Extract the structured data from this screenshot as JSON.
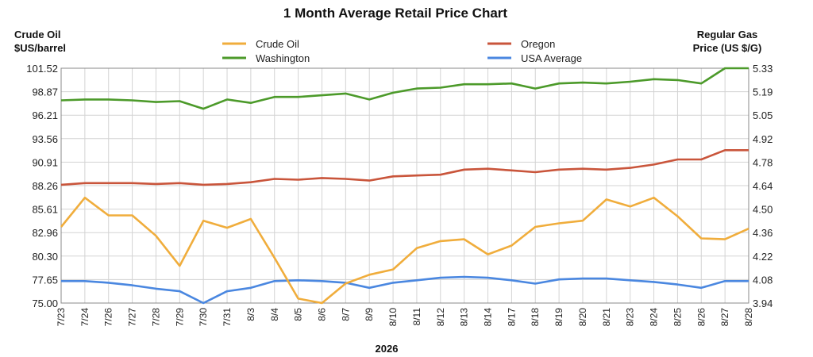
{
  "chart_data": {
    "type": "line",
    "title": "1 Month Average Retail Price Chart",
    "xlabel": "2026",
    "ylabel_left": [
      "Crude Oil",
      "$US/barrel"
    ],
    "ylabel_right": [
      "Regular Gas",
      "Price (US $/G)"
    ],
    "y_left_ticks": [
      "101.52",
      "98.87",
      "96.21",
      "93.56",
      "90.91",
      "88.26",
      "85.61",
      "82.96",
      "80.30",
      "77.65",
      "75.00"
    ],
    "y_right_ticks": [
      "5.33",
      "5.19",
      "5.05",
      "4.92",
      "4.78",
      "4.64",
      "4.50",
      "4.36",
      "4.22",
      "4.08",
      "3.94"
    ],
    "y_left_range": [
      75.0,
      101.52
    ],
    "y_right_range": [
      3.94,
      5.33
    ],
    "grid": true,
    "legend_position": "top",
    "categories": [
      "7/23",
      "7/24",
      "7/26",
      "7/27",
      "7/28",
      "7/29",
      "7/30",
      "7/31",
      "8/3",
      "8/4",
      "8/5",
      "8/6",
      "8/7",
      "8/9",
      "8/10",
      "8/11",
      "8/12",
      "8/13",
      "8/14",
      "8/17",
      "8/18",
      "8/19",
      "8/20",
      "8/21",
      "8/23",
      "8/24",
      "8/25",
      "8/26",
      "8/27",
      "8/28"
    ],
    "series": [
      {
        "name": "Crude Oil",
        "axis": "left",
        "color": "#f0ad3c",
        "values": [
          83.6,
          86.9,
          84.9,
          84.9,
          82.6,
          79.2,
          84.3,
          83.5,
          84.5,
          80.1,
          75.5,
          75.0,
          77.2,
          78.2,
          78.8,
          81.2,
          82.0,
          82.2,
          80.5,
          81.5,
          83.6,
          84.0,
          84.3,
          86.7,
          85.9,
          86.9,
          84.8,
          82.3,
          82.2,
          83.4
        ]
      },
      {
        "name": "Washington",
        "axis": "right",
        "color": "#4c9a2a",
        "values": [
          5.14,
          5.145,
          5.145,
          5.14,
          5.13,
          5.135,
          5.09,
          5.145,
          5.125,
          5.16,
          5.16,
          5.17,
          5.18,
          5.145,
          5.185,
          5.21,
          5.215,
          5.235,
          5.235,
          5.24,
          5.21,
          5.24,
          5.245,
          5.24,
          5.25,
          5.265,
          5.26,
          5.24,
          5.33,
          5.33
        ]
      },
      {
        "name": "Oregon",
        "axis": "right",
        "color": "#c9553b",
        "values": [
          4.64,
          4.65,
          4.65,
          4.65,
          4.645,
          4.65,
          4.64,
          4.645,
          4.655,
          4.675,
          4.67,
          4.68,
          4.675,
          4.665,
          4.69,
          4.695,
          4.7,
          4.73,
          4.735,
          4.725,
          4.715,
          4.73,
          4.735,
          4.73,
          4.74,
          4.76,
          4.79,
          4.79,
          4.845,
          4.845
        ]
      },
      {
        "name": "USA Average",
        "axis": "right",
        "color": "#4a87e0",
        "values": [
          4.07,
          4.07,
          4.06,
          4.045,
          4.025,
          4.01,
          3.94,
          4.01,
          4.03,
          4.07,
          4.075,
          4.07,
          4.06,
          4.03,
          4.06,
          4.075,
          4.09,
          4.095,
          4.09,
          4.075,
          4.055,
          4.08,
          4.085,
          4.085,
          4.075,
          4.065,
          4.05,
          4.03,
          4.07,
          4.07
        ]
      }
    ]
  }
}
